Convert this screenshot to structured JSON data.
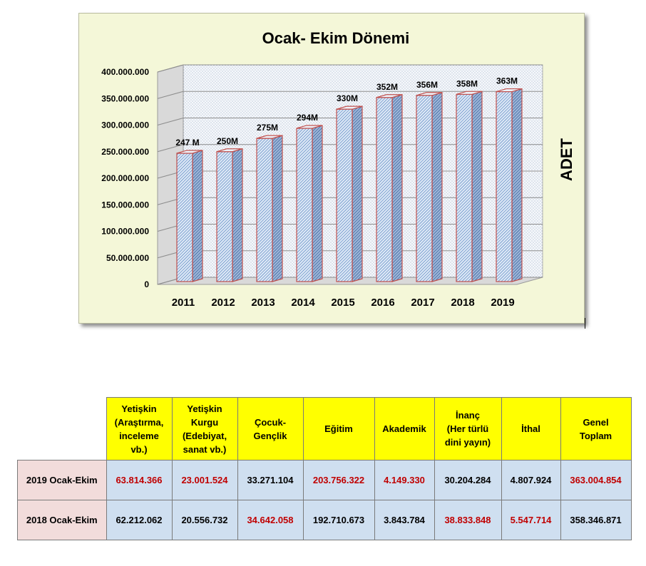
{
  "chart_data": {
    "type": "bar",
    "title": "Ocak- Ekim Dönemi",
    "ylabel": "ADET",
    "categories": [
      "2011",
      "2012",
      "2013",
      "2014",
      "2015",
      "2016",
      "2017",
      "2018",
      "2019"
    ],
    "values": [
      247000000,
      250000000,
      275000000,
      294000000,
      330000000,
      352000000,
      356000000,
      358000000,
      363000000
    ],
    "data_labels": [
      "247 M",
      "250M",
      "275M",
      "294M",
      "330M",
      "352M",
      "356M",
      "358M",
      "363M"
    ],
    "ylim": [
      0,
      400000000
    ],
    "yticks": [
      "0",
      "50.000.000",
      "100.000.000",
      "150.000.000",
      "200.000.000",
      "250.000.000",
      "300.000.000",
      "350.000.000",
      "400.000.000"
    ],
    "grid": true,
    "three_d": true,
    "colors": {
      "bar_fill": "#d6e4f5",
      "bar_hatch": "#3a6fb5",
      "bar_edge": "#c0504d",
      "frame_bg": "#f4f7d8"
    }
  },
  "table": {
    "headers": [
      "Yetişkin\n(Araştırma,\ninceleme\nvb.)",
      "Yetişkin\nKurgu\n(Edebiyat,\nsanat vb.)",
      "Çocuk-\nGençlik",
      "Eğitim",
      "Akademik",
      "İnanç\n(Her türlü\ndini yayın)",
      "İthal",
      "Genel\nToplam"
    ],
    "rows": [
      {
        "label": "2019 Ocak-Ekim",
        "cells": [
          "63.814.366",
          "23.001.524",
          "33.271.104",
          "203.756.322",
          "4.149.330",
          "30.204.284",
          "4.807.924",
          "363.004.854"
        ],
        "highlight": [
          true,
          true,
          false,
          true,
          true,
          false,
          false,
          true
        ]
      },
      {
        "label": "2018 Ocak-Ekim",
        "cells": [
          "62.212.062",
          "20.556.732",
          "34.642.058",
          "192.710.673",
          "3.843.784",
          "38.833.848",
          "5.547.714",
          "358.346.871"
        ],
        "highlight": [
          false,
          false,
          true,
          false,
          false,
          true,
          true,
          false
        ]
      }
    ],
    "highlight_color": "#c00000"
  }
}
